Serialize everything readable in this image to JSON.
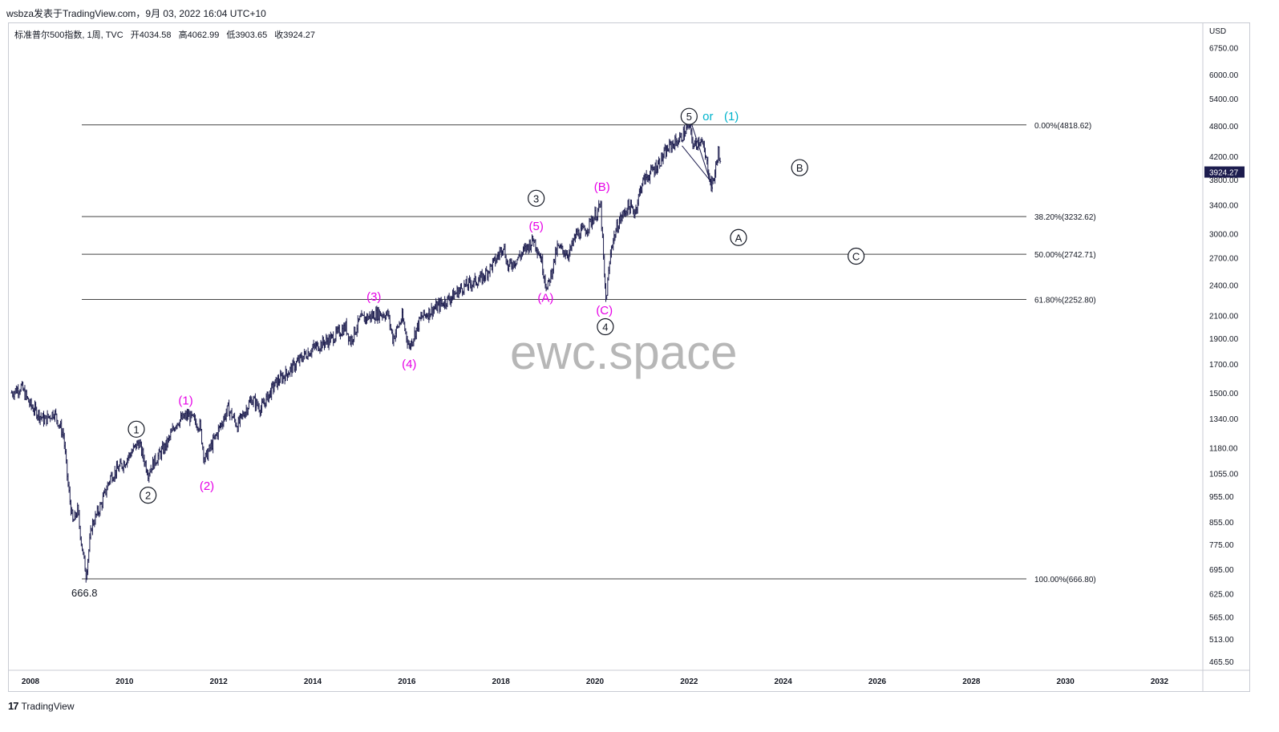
{
  "header": {
    "attribution": "wsbza发表于TradingView.com，9月 03, 2022 16:04 UTC+10"
  },
  "legend": {
    "symbol": "标准普尔500指数, 1周, TVC",
    "open_label": "开",
    "open": "4034.58",
    "high_label": "高",
    "high": "4062.99",
    "low_label": "低",
    "low": "3903.65",
    "close_label": "收",
    "close": "3924.27"
  },
  "watermark": "ewc.space",
  "footer": {
    "logo": "TradingView"
  },
  "colors": {
    "candles": "#1c1c4e",
    "magenta": "#e600e6",
    "cyan": "#00b3cc",
    "black": "#131722",
    "price_tag_bg": "#1c1c4e"
  },
  "chart_data": {
    "type": "line",
    "title": "标准普尔500指数, 1周, TVC",
    "currency": "USD",
    "log_scale": true,
    "x_ticks": [
      "2008",
      "2010",
      "2012",
      "2014",
      "2016",
      "2018",
      "2020",
      "2022",
      "2024",
      "2026",
      "2028",
      "2030",
      "2032"
    ],
    "y_ticks": [
      "6750.00",
      "6000.00",
      "5400.00",
      "4800.00",
      "4200.00",
      "3800.00",
      "3400.00",
      "3000.00",
      "2700.00",
      "2400.00",
      "2100.00",
      "1900.00",
      "1700.00",
      "1500.00",
      "1340.00",
      "1180.00",
      "1055.00",
      "955.00",
      "855.00",
      "775.00",
      "695.00",
      "625.00",
      "565.00",
      "513.00",
      "465.50"
    ],
    "current_price": "3924.27",
    "series": [
      {
        "values": [
          {
            "x": 2007.6,
            "y": 1500
          },
          {
            "x": 2007.8,
            "y": 1540
          },
          {
            "x": 2008.0,
            "y": 1420
          },
          {
            "x": 2008.3,
            "y": 1330
          },
          {
            "x": 2008.5,
            "y": 1380
          },
          {
            "x": 2008.7,
            "y": 1250
          },
          {
            "x": 2008.8,
            "y": 1000
          },
          {
            "x": 2008.9,
            "y": 850
          },
          {
            "x": 2009.0,
            "y": 900
          },
          {
            "x": 2009.1,
            "y": 760
          },
          {
            "x": 2009.18,
            "y": 680
          },
          {
            "x": 2009.3,
            "y": 840
          },
          {
            "x": 2009.5,
            "y": 920
          },
          {
            "x": 2009.7,
            "y": 1040
          },
          {
            "x": 2010.0,
            "y": 1110
          },
          {
            "x": 2010.3,
            "y": 1210
          },
          {
            "x": 2010.5,
            "y": 1060
          },
          {
            "x": 2010.6,
            "y": 1100
          },
          {
            "x": 2010.9,
            "y": 1200
          },
          {
            "x": 2011.1,
            "y": 1320
          },
          {
            "x": 2011.35,
            "y": 1360
          },
          {
            "x": 2011.6,
            "y": 1300
          },
          {
            "x": 2011.7,
            "y": 1120
          },
          {
            "x": 2011.9,
            "y": 1220
          },
          {
            "x": 2012.2,
            "y": 1400
          },
          {
            "x": 2012.4,
            "y": 1300
          },
          {
            "x": 2012.7,
            "y": 1460
          },
          {
            "x": 2012.9,
            "y": 1400
          },
          {
            "x": 2013.2,
            "y": 1560
          },
          {
            "x": 2013.5,
            "y": 1650
          },
          {
            "x": 2013.8,
            "y": 1760
          },
          {
            "x": 2014.0,
            "y": 1820
          },
          {
            "x": 2014.4,
            "y": 1900
          },
          {
            "x": 2014.7,
            "y": 2000
          },
          {
            "x": 2014.8,
            "y": 1880
          },
          {
            "x": 2015.0,
            "y": 2060
          },
          {
            "x": 2015.4,
            "y": 2120
          },
          {
            "x": 2015.6,
            "y": 2110
          },
          {
            "x": 2015.7,
            "y": 1900
          },
          {
            "x": 2015.9,
            "y": 2080
          },
          {
            "x": 2016.05,
            "y": 1830
          },
          {
            "x": 2016.3,
            "y": 2080
          },
          {
            "x": 2016.6,
            "y": 2170
          },
          {
            "x": 2016.9,
            "y": 2260
          },
          {
            "x": 2017.2,
            "y": 2380
          },
          {
            "x": 2017.6,
            "y": 2470
          },
          {
            "x": 2017.9,
            "y": 2680
          },
          {
            "x": 2018.05,
            "y": 2860
          },
          {
            "x": 2018.15,
            "y": 2590
          },
          {
            "x": 2018.4,
            "y": 2720
          },
          {
            "x": 2018.7,
            "y": 2930
          },
          {
            "x": 2018.85,
            "y": 2700
          },
          {
            "x": 2018.98,
            "y": 2350
          },
          {
            "x": 2019.2,
            "y": 2820
          },
          {
            "x": 2019.45,
            "y": 2750
          },
          {
            "x": 2019.6,
            "y": 2990
          },
          {
            "x": 2019.8,
            "y": 3050
          },
          {
            "x": 2020.0,
            "y": 3250
          },
          {
            "x": 2020.12,
            "y": 3380
          },
          {
            "x": 2020.2,
            "y": 2480
          },
          {
            "x": 2020.23,
            "y": 2240
          },
          {
            "x": 2020.35,
            "y": 2850
          },
          {
            "x": 2020.5,
            "y": 3150
          },
          {
            "x": 2020.7,
            "y": 3380
          },
          {
            "x": 2020.85,
            "y": 3300
          },
          {
            "x": 2021.0,
            "y": 3750
          },
          {
            "x": 2021.3,
            "y": 4020
          },
          {
            "x": 2021.6,
            "y": 4400
          },
          {
            "x": 2021.8,
            "y": 4530
          },
          {
            "x": 2022.0,
            "y": 4800
          },
          {
            "x": 2022.1,
            "y": 4380
          },
          {
            "x": 2022.25,
            "y": 4550
          },
          {
            "x": 2022.4,
            "y": 4000
          },
          {
            "x": 2022.47,
            "y": 3680
          },
          {
            "x": 2022.55,
            "y": 3900
          },
          {
            "x": 2022.62,
            "y": 4300
          },
          {
            "x": 2022.68,
            "y": 3924
          }
        ]
      }
    ],
    "fib_levels": [
      {
        "label": "0.00%(4818.62)",
        "value": 4818.62
      },
      {
        "label": "38.20%(3232.62)",
        "value": 3232.62
      },
      {
        "label": "50.00%(2742.71)",
        "value": 2742.71
      },
      {
        "label": "61.80%(2252.80)",
        "value": 2252.8
      },
      {
        "label": "100.00%(666.80)",
        "value": 666.8
      }
    ],
    "low_label": "666.8",
    "annotations": [
      {
        "text": "1",
        "circled": true,
        "color": "black",
        "x": 2010.25,
        "y": 1280
      },
      {
        "text": "2",
        "circled": true,
        "color": "black",
        "x": 2010.5,
        "y": 960
      },
      {
        "text": "3",
        "circled": true,
        "color": "black",
        "x": 2018.75,
        "y": 3500
      },
      {
        "text": "4",
        "circled": true,
        "color": "black",
        "x": 2020.22,
        "y": 2000
      },
      {
        "text": "5",
        "circled": true,
        "color": "black",
        "x": 2022.0,
        "y": 5000
      },
      {
        "text": "or",
        "circled": false,
        "color": "cyan",
        "x": 2022.4,
        "y": 5000
      },
      {
        "text": "(1)",
        "circled": false,
        "color": "cyan",
        "x": 2022.9,
        "y": 5000
      },
      {
        "text": "(1)",
        "circled": false,
        "color": "magenta",
        "x": 2011.3,
        "y": 1450
      },
      {
        "text": "(2)",
        "circled": false,
        "color": "magenta",
        "x": 2011.75,
        "y": 1000
      },
      {
        "text": "(3)",
        "circled": false,
        "color": "magenta",
        "x": 2015.3,
        "y": 2280
      },
      {
        "text": "(4)",
        "circled": false,
        "color": "magenta",
        "x": 2016.05,
        "y": 1700
      },
      {
        "text": "(5)",
        "circled": false,
        "color": "magenta",
        "x": 2018.75,
        "y": 3100
      },
      {
        "text": "(A)",
        "circled": false,
        "color": "magenta",
        "x": 2018.95,
        "y": 2270
      },
      {
        "text": "(B)",
        "circled": false,
        "color": "magenta",
        "x": 2020.15,
        "y": 3680
      },
      {
        "text": "(C)",
        "circled": false,
        "color": "magenta",
        "x": 2020.2,
        "y": 2150
      },
      {
        "text": "B",
        "circled": true,
        "color": "black",
        "x": 2024.35,
        "y": 4000
      },
      {
        "text": "A",
        "circled": true,
        "color": "black",
        "x": 2023.05,
        "y": 2950
      },
      {
        "text": "C",
        "circled": true,
        "color": "black",
        "x": 2025.55,
        "y": 2720
      }
    ]
  }
}
